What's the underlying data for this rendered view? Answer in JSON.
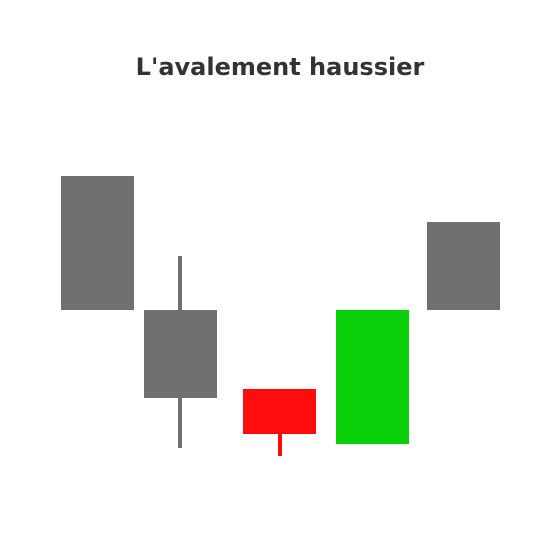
{
  "title": "L'avalement haussier"
}
